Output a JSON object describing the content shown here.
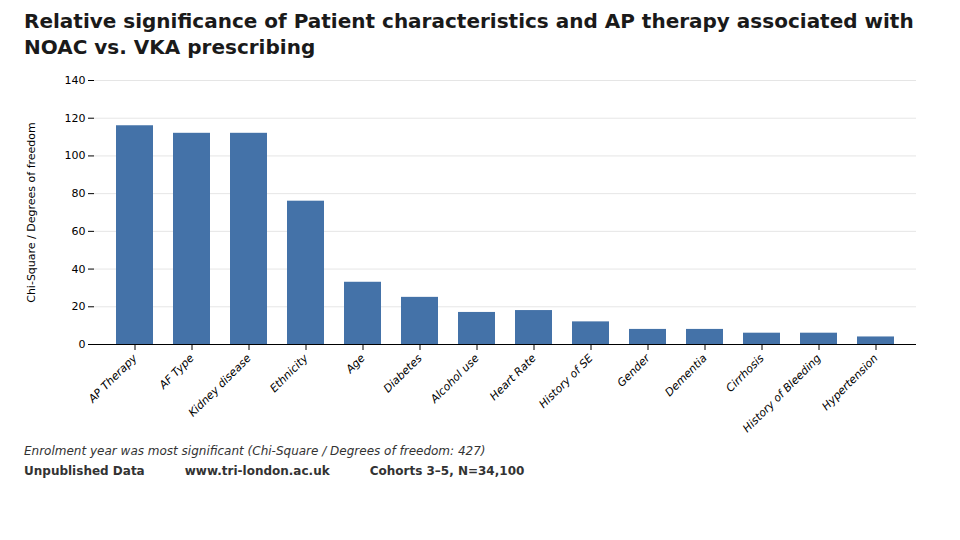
{
  "chart_data": {
    "type": "bar",
    "title": "Relative significance of Patient characteristics and AP therapy associated with NOAC vs. VKA prescribing",
    "categories": [
      "AP Therapy",
      "AF Type",
      "Kidney disease",
      "Ethnicity",
      "Age",
      "Diabetes",
      "Alcohol use",
      "Heart Rate",
      "History of SE",
      "Gender",
      "Dementia",
      "Cirrhosis",
      "History of Bleeding",
      "Hypertension"
    ],
    "values": [
      116,
      112,
      112,
      76,
      33,
      25,
      17,
      18,
      12,
      8,
      8,
      6,
      6,
      4
    ],
    "color": "#4472A8",
    "ylabel": "Chi-Square / Degrees of freedom",
    "ylim": [
      0,
      140
    ],
    "yticks": [
      0,
      20,
      40,
      60,
      80,
      100,
      120,
      140
    ],
    "grid": true,
    "annotations": [
      "Enrolment year was most significant (Chi-Square / Degrees of freedom: 427)",
      "Unpublished Data",
      "www.tri-london.ac.uk",
      "Cohorts 3–5, N=34,100"
    ]
  }
}
